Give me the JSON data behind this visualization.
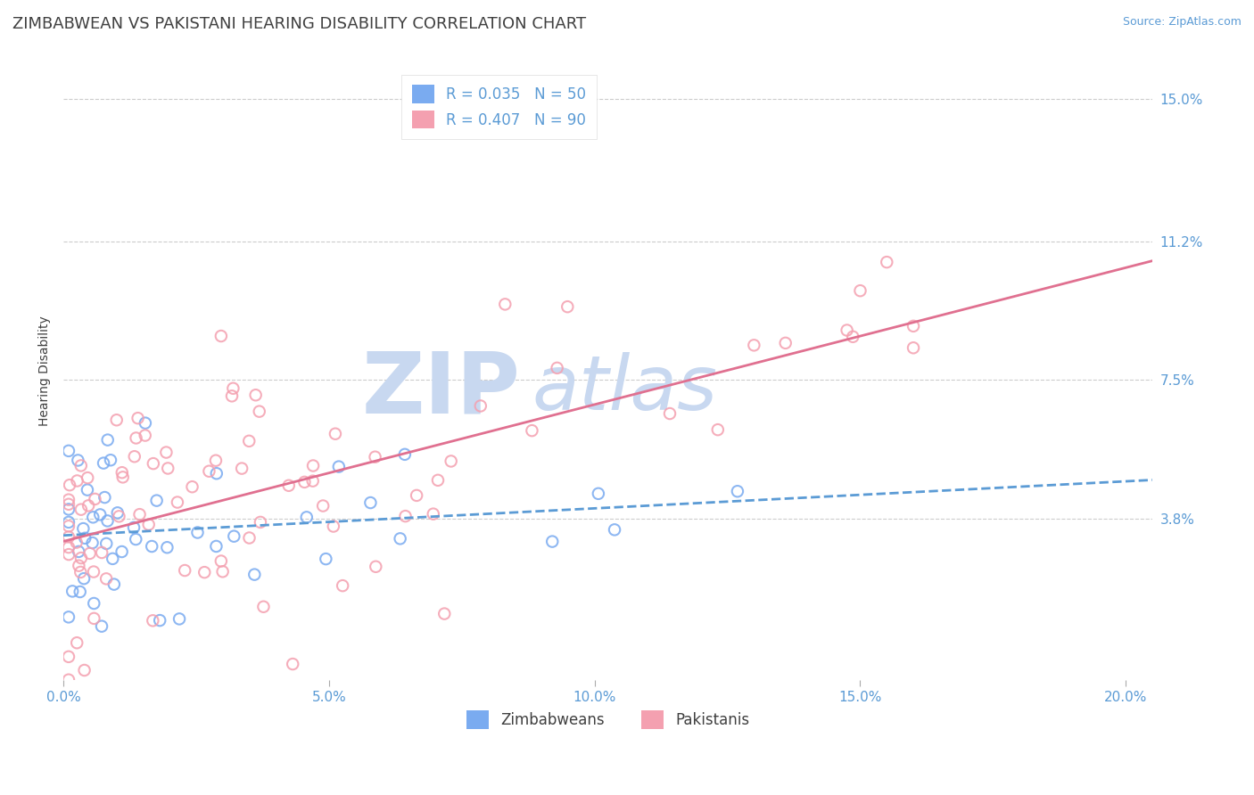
{
  "title": "ZIMBABWEAN VS PAKISTANI HEARING DISABILITY CORRELATION CHART",
  "source": "Source: ZipAtlas.com",
  "ylabel": "Hearing Disability",
  "xlabel": "",
  "watermark_ZIP": "ZIP",
  "watermark_atlas": "atlas",
  "xlim": [
    0.0,
    0.205
  ],
  "ylim": [
    -0.005,
    0.16
  ],
  "plot_ylim": [
    -0.005,
    0.16
  ],
  "yticks": [
    0.038,
    0.075,
    0.112,
    0.15
  ],
  "ytick_labels": [
    "3.8%",
    "7.5%",
    "11.2%",
    "15.0%"
  ],
  "xticks": [
    0.0,
    0.05,
    0.1,
    0.15,
    0.2
  ],
  "xtick_labels": [
    "0.0%",
    "5.0%",
    "10.0%",
    "15.0%",
    "20.0%"
  ],
  "blue_line_color": "#5B9BD5",
  "pink_line_color": "#E07090",
  "blue_dot_color": "#7AABF0",
  "pink_dot_color": "#F4A0B0",
  "legend_blue_label": "R = 0.035   N = 50",
  "legend_pink_label": "R = 0.407   N = 90",
  "legend_zim_label": "Zimbabweans",
  "legend_pak_label": "Pakistanis",
  "background_color": "#ffffff",
  "grid_color": "#cccccc",
  "axis_label_color": "#5B9BD5",
  "title_color": "#404040",
  "title_fontsize": 13,
  "label_fontsize": 10,
  "tick_fontsize": 11,
  "legend_fontsize": 12,
  "watermark_color": "#C8D8F0",
  "watermark_fontsize": 70,
  "zim_line_y0": 0.035,
  "zim_line_y1": 0.038,
  "pak_line_y0": 0.03,
  "pak_line_y1": 0.112
}
